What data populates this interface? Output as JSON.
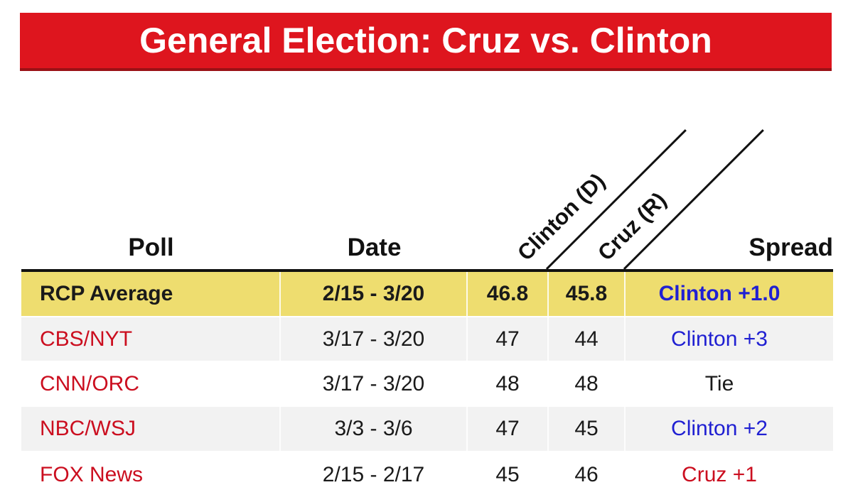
{
  "banner": {
    "title": "General Election: Cruz vs. Clinton",
    "bg_color": "#de151e",
    "border_color": "#9a1116",
    "text_color": "#ffffff"
  },
  "table": {
    "columns": [
      {
        "label": "Poll"
      },
      {
        "label": "Date"
      },
      {
        "label": "Clinton (D)",
        "rotated": true
      },
      {
        "label": "Cruz (R)",
        "rotated": true
      },
      {
        "label": "Spread"
      }
    ],
    "rows": [
      {
        "poll": "RCP Average",
        "date": "2/15 - 3/20",
        "clinton": "46.8",
        "cruz": "45.8",
        "spread": "Clinton +1.0",
        "highlight": true,
        "poll_color": "black",
        "spread_color": "blue"
      },
      {
        "poll": "CBS/NYT",
        "date": "3/17 - 3/20",
        "clinton": "47",
        "cruz": "44",
        "spread": "Clinton +3",
        "highlight": false,
        "poll_color": "red",
        "spread_color": "blue"
      },
      {
        "poll": "CNN/ORC",
        "date": "3/17 - 3/20",
        "clinton": "48",
        "cruz": "48",
        "spread": "Tie",
        "highlight": false,
        "poll_color": "red",
        "spread_color": "black"
      },
      {
        "poll": "NBC/WSJ",
        "date": "3/3 - 3/6",
        "clinton": "47",
        "cruz": "45",
        "spread": "Clinton +2",
        "highlight": false,
        "poll_color": "red",
        "spread_color": "blue"
      },
      {
        "poll": "FOX News",
        "date": "2/15 - 2/17",
        "clinton": "45",
        "cruz": "46",
        "spread": "Cruz +1",
        "highlight": false,
        "poll_color": "red",
        "spread_color": "red"
      }
    ],
    "colors": {
      "highlight_row_bg": "#eedd6f",
      "zebra_row_bg": "#f2f2f2",
      "poll_link_red": "#cb0e1f",
      "spread_blue": "#2020d2",
      "spread_red": "#cb0e1f",
      "header_rule_black": "#111111"
    }
  },
  "chart_data": {
    "type": "table",
    "title": "General Election: Cruz vs. Clinton",
    "columns": [
      "Poll",
      "Date",
      "Clinton (D)",
      "Cruz (R)",
      "Spread"
    ],
    "rows": [
      [
        "RCP Average",
        "2/15 - 3/20",
        46.8,
        45.8,
        "Clinton +1.0"
      ],
      [
        "CBS/NYT",
        "3/17 - 3/20",
        47,
        44,
        "Clinton +3"
      ],
      [
        "CNN/ORC",
        "3/17 - 3/20",
        48,
        48,
        "Tie"
      ],
      [
        "NBC/WSJ",
        "3/3 - 3/6",
        47,
        45,
        "Clinton +2"
      ],
      [
        "FOX News",
        "2/15 - 2/17",
        45,
        46,
        "Cruz +1"
      ]
    ],
    "layout_hints": {
      "highlighted_row": "RCP Average",
      "rotated_column_headers": [
        "Clinton (D)",
        "Cruz (R)"
      ],
      "spread_color_rule": "blue = Clinton lead, red = Cruz lead, black = Tie"
    }
  }
}
